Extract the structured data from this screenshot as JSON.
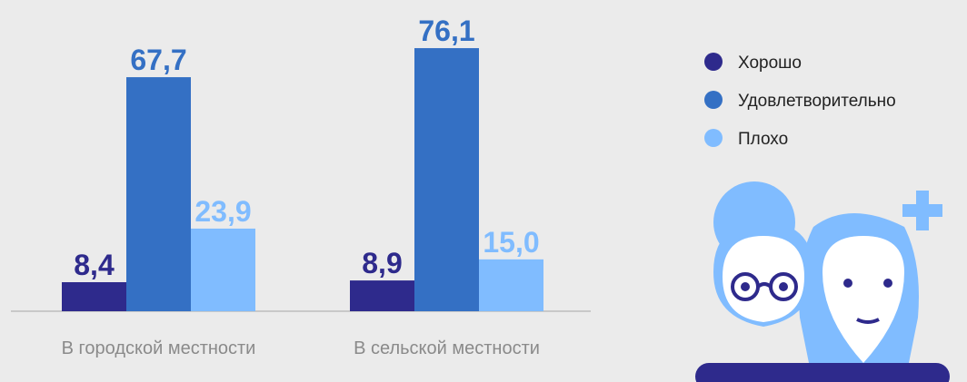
{
  "chart_data": {
    "type": "bar",
    "categories": [
      "В городской местности",
      "В сельской местности"
    ],
    "series": [
      {
        "name": "Хорошо",
        "color": "#2e2a8c",
        "values": [
          8.4,
          8.9
        ],
        "value_labels": [
          "8,4",
          "8,9"
        ]
      },
      {
        "name": "Удовлетворительно",
        "color": "#3470c4",
        "values": [
          67.7,
          76.1
        ],
        "value_labels": [
          "67,7",
          "76,1"
        ]
      },
      {
        "name": "Плохо",
        "color": "#80bcff",
        "values": [
          23.9,
          15.0
        ],
        "value_labels": [
          "23,9",
          "15,0"
        ]
      }
    ]
  }
}
